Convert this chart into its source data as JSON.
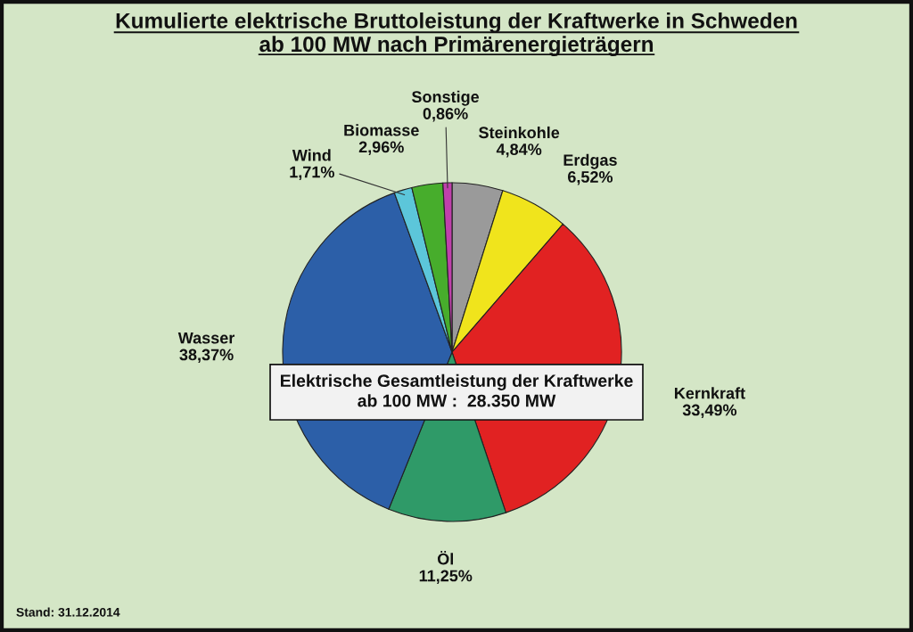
{
  "chart_data": {
    "type": "pie",
    "title": "Kumulierte elektrische Bruttoleistung der Kraftwerke in Schweden\nab 100 MW nach Primärenergieträgern",
    "categories": [
      "Steinkohle",
      "Erdgas",
      "Kernkraft",
      "Öl",
      "Wasser",
      "Wind",
      "Biomasse",
      "Sonstige"
    ],
    "values": [
      4.84,
      6.52,
      33.49,
      11.25,
      38.37,
      1.71,
      2.96,
      0.86
    ],
    "value_labels": [
      "4,84%",
      "6,52%",
      "33,49%",
      "11,25%",
      "38,37%",
      "1,71%",
      "2,96%",
      "0,86%"
    ],
    "colors": [
      "#9a9a9a",
      "#f0e41c",
      "#e12222",
      "#2f9a68",
      "#2c5fa8",
      "#5cc6da",
      "#47ad2c",
      "#c040ac"
    ],
    "annotations": [
      "Elektrische Gesamtleistung der Kraftwerke\nab 100 MW :  28.350 MW",
      "Stand: 31.12.2014"
    ]
  }
}
